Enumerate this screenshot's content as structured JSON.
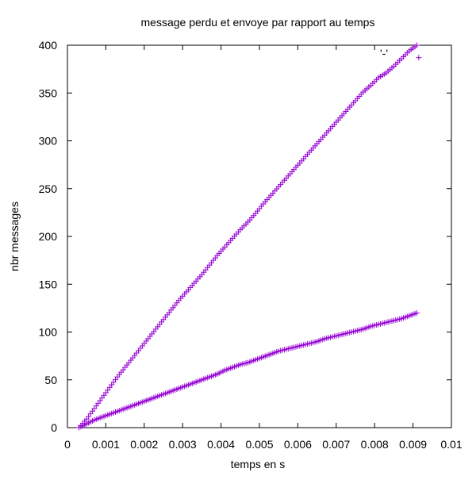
{
  "chart_data": {
    "type": "scatter",
    "title": "message perdu et envoye par rapport au temps",
    "xlabel": "temps en s",
    "ylabel": "nbr messages",
    "xlim": [
      0,
      0.01
    ],
    "ylim": [
      0,
      400
    ],
    "xticks": [
      "0",
      "0.001",
      "0.002",
      "0.003",
      "0.004",
      "0.005",
      "0.006",
      "0.007",
      "0.008",
      "0.009",
      "0.01"
    ],
    "yticks": [
      "0",
      "50",
      "100",
      "150",
      "200",
      "250",
      "300",
      "350",
      "400"
    ],
    "grid": false,
    "legend": {
      "position": "top-right",
      "entries": [
        "'-'"
      ]
    },
    "marker": "+",
    "color": "#9400d3",
    "series": [
      {
        "x": [
          0.0003,
          0.0005,
          0.0007,
          0.0009,
          0.0011,
          0.0013,
          0.0015,
          0.0017,
          0.0019,
          0.0021,
          0.0023,
          0.0025,
          0.0027,
          0.0029,
          0.0031,
          0.0033,
          0.0035,
          0.0037,
          0.0039,
          0.0041,
          0.0043,
          0.0045,
          0.0047,
          0.0049,
          0.0051,
          0.0053,
          0.0055,
          0.0057,
          0.0059,
          0.0061,
          0.0063,
          0.0065,
          0.0067,
          0.0069,
          0.0071,
          0.0073,
          0.0075,
          0.0077,
          0.0079,
          0.0081,
          0.0083,
          0.0085,
          0.0087,
          0.0089,
          0.0091
        ],
        "y": [
          0,
          9,
          20,
          31,
          42,
          53,
          63,
          73,
          83,
          93,
          103,
          113,
          123,
          133,
          142,
          151,
          160,
          170,
          180,
          189,
          198,
          207,
          215,
          224,
          234,
          243,
          252,
          261,
          270,
          279,
          288,
          297,
          306,
          315,
          324,
          333,
          342,
          351,
          358,
          366,
          371,
          378,
          386,
          394,
          400
        ]
      },
      {
        "x": [
          0.0003,
          0.0005,
          0.0007,
          0.0009,
          0.0011,
          0.0013,
          0.0015,
          0.0017,
          0.0019,
          0.0021,
          0.0023,
          0.0025,
          0.0027,
          0.0029,
          0.0031,
          0.0033,
          0.0035,
          0.0037,
          0.0039,
          0.0041,
          0.0043,
          0.0045,
          0.0047,
          0.0049,
          0.0051,
          0.0053,
          0.0055,
          0.0057,
          0.0059,
          0.0061,
          0.0063,
          0.0065,
          0.0067,
          0.0069,
          0.0071,
          0.0073,
          0.0075,
          0.0077,
          0.0079,
          0.0081,
          0.0083,
          0.0085,
          0.0087,
          0.0089,
          0.0091
        ],
        "y": [
          0,
          4,
          8,
          11,
          14,
          17,
          20,
          23,
          26,
          29,
          32,
          35,
          38,
          41,
          44,
          47,
          50,
          53,
          56,
          60,
          63,
          66,
          68,
          71,
          74,
          77,
          80,
          82,
          84,
          86,
          88,
          90,
          93,
          95,
          97,
          99,
          101,
          103,
          106,
          108,
          110,
          112,
          114,
          117,
          120
        ]
      },
      {
        "x": [
          0.00915
        ],
        "y": [
          387
        ]
      }
    ]
  }
}
